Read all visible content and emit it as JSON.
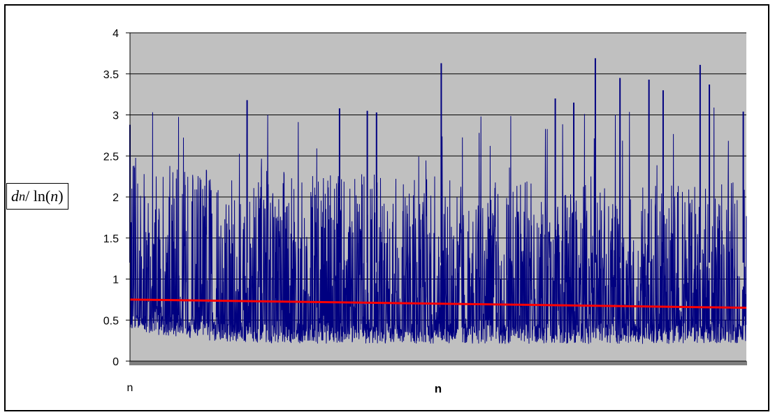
{
  "chart_data": {
    "type": "line",
    "title": "",
    "xlabel": "n",
    "x_first_tick": "n",
    "ylabel": {
      "base": "d",
      "subscript": "n",
      "rest": " / ln(",
      "var": "n",
      "close": ")"
    },
    "ylim": [
      0,
      4
    ],
    "yticks": [
      "0",
      "0.5",
      "1",
      "1.5",
      "2",
      "2.5",
      "3",
      "3.5",
      "4"
    ],
    "grid": "horizontal",
    "plot_background": "#c0c0c0",
    "series": [
      {
        "color": "#000080",
        "description_values": {
          "typical_range": [
            0.22,
            2.0
          ],
          "lower_envelope_start": 0.4,
          "lower_envelope_end": 0.21,
          "upper_band_start": 2.05,
          "upper_band_end": 1.85
        },
        "peaks": [
          {
            "x_frac": 0.0,
            "y": 2.88
          },
          {
            "x_frac": 0.19,
            "y": 3.18
          },
          {
            "x_frac": 0.34,
            "y": 3.08
          },
          {
            "x_frac": 0.385,
            "y": 3.05
          },
          {
            "x_frac": 0.4,
            "y": 3.03
          },
          {
            "x_frac": 0.505,
            "y": 3.63
          },
          {
            "x_frac": 0.69,
            "y": 3.2
          },
          {
            "x_frac": 0.72,
            "y": 3.15
          },
          {
            "x_frac": 0.755,
            "y": 3.69
          },
          {
            "x_frac": 0.795,
            "y": 3.45
          },
          {
            "x_frac": 0.842,
            "y": 3.43
          },
          {
            "x_frac": 0.865,
            "y": 3.3
          },
          {
            "x_frac": 0.925,
            "y": 3.61
          },
          {
            "x_frac": 0.94,
            "y": 3.37
          },
          {
            "x_frac": 0.995,
            "y": 3.04
          }
        ]
      },
      {
        "color": "#ff0000",
        "type": "trend",
        "y_start": 0.75,
        "y_end": 0.65
      }
    ]
  }
}
